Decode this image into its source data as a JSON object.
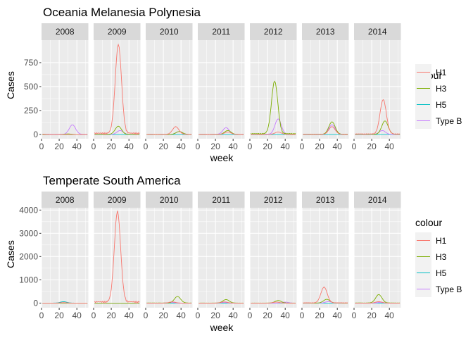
{
  "colors": {
    "H1": "#F8766D",
    "H3": "#7CAE00",
    "H5": "#00BFC4",
    "Type B": "#C77CFF",
    "panel_bg": "#EBEBEB",
    "strip_bg": "#D9D9D9",
    "grid": "#FFFFFF"
  },
  "chart_data": [
    {
      "type": "line",
      "title": "Oceania Melanesia Polynesia",
      "xlabel": "week",
      "ylabel": "Cases",
      "facets": [
        "2008",
        "2009",
        "2010",
        "2011",
        "2012",
        "2013",
        "2014"
      ],
      "xlim": [
        0,
        53
      ],
      "x_ticks": [
        0,
        20,
        40
      ],
      "ylim": [
        -45,
        985
      ],
      "y_ticks": [
        0,
        250,
        500,
        750
      ],
      "legend": {
        "title": "colour",
        "position": "right",
        "entries": [
          "H1",
          "H3",
          "H5",
          "Type B"
        ]
      },
      "series_peaks": {
        "H1": {
          "2008": [
            0,
            3
          ],
          "2009": [
            28,
            930
          ],
          "2010": [
            34,
            80
          ],
          "2011": [
            34,
            25
          ],
          "2012": [
            32,
            25
          ],
          "2013": [
            34,
            80
          ],
          "2014": [
            33,
            360
          ]
        },
        "H3": {
          "2008": [
            30,
            5
          ],
          "2009": [
            28,
            85
          ],
          "2010": [
            38,
            30
          ],
          "2011": [
            34,
            40
          ],
          "2012": [
            28,
            550
          ],
          "2013": [
            34,
            130
          ],
          "2014": [
            35,
            140
          ]
        },
        "H5": {
          "2008": [
            0,
            0
          ],
          "2009": [
            0,
            0
          ],
          "2010": [
            0,
            0
          ],
          "2011": [
            0,
            0
          ],
          "2012": [
            0,
            0
          ],
          "2013": [
            0,
            0
          ],
          "2014": [
            0,
            0
          ]
        },
        "Type B": {
          "2008": [
            35,
            100
          ],
          "2009": [
            30,
            40
          ],
          "2010": [
            38,
            30
          ],
          "2011": [
            32,
            70
          ],
          "2012": [
            32,
            160
          ],
          "2013": [
            34,
            100
          ],
          "2014": [
            32,
            40
          ]
        }
      }
    },
    {
      "type": "line",
      "title": "Temperate South America",
      "xlabel": "week",
      "ylabel": "Cases",
      "facets": [
        "2008",
        "2009",
        "2010",
        "2011",
        "2012",
        "2013",
        "2014"
      ],
      "xlim": [
        0,
        53
      ],
      "x_ticks": [
        0,
        20,
        40
      ],
      "ylim": [
        -200,
        4100
      ],
      "y_ticks": [
        0,
        1000,
        2000,
        3000,
        4000
      ],
      "legend": {
        "title": "colour",
        "position": "right",
        "entries": [
          "H1",
          "H3",
          "H5",
          "Type B"
        ]
      },
      "series_peaks": {
        "H1": {
          "2008": [
            25,
            20
          ],
          "2009": [
            27,
            3900
          ],
          "2010": [
            30,
            50
          ],
          "2011": [
            30,
            50
          ],
          "2012": [
            30,
            40
          ],
          "2013": [
            25,
            680
          ],
          "2014": [
            28,
            60
          ]
        },
        "H3": {
          "2008": [
            0,
            0
          ],
          "2009": [
            0,
            0
          ],
          "2010": [
            36,
            280
          ],
          "2011": [
            32,
            150
          ],
          "2012": [
            32,
            110
          ],
          "2013": [
            28,
            160
          ],
          "2014": [
            28,
            360
          ]
        },
        "H5": {
          "2008": [
            25,
            60
          ],
          "2009": [
            0,
            0
          ],
          "2010": [
            0,
            0
          ],
          "2011": [
            0,
            0
          ],
          "2012": [
            0,
            0
          ],
          "2013": [
            0,
            0
          ],
          "2014": [
            0,
            0
          ]
        },
        "Type B": {
          "2008": [
            0,
            0
          ],
          "2009": [
            0,
            0
          ],
          "2010": [
            30,
            30
          ],
          "2011": [
            30,
            30
          ],
          "2012": [
            40,
            40
          ],
          "2013": [
            30,
            60
          ],
          "2014": [
            30,
            30
          ]
        }
      }
    }
  ]
}
